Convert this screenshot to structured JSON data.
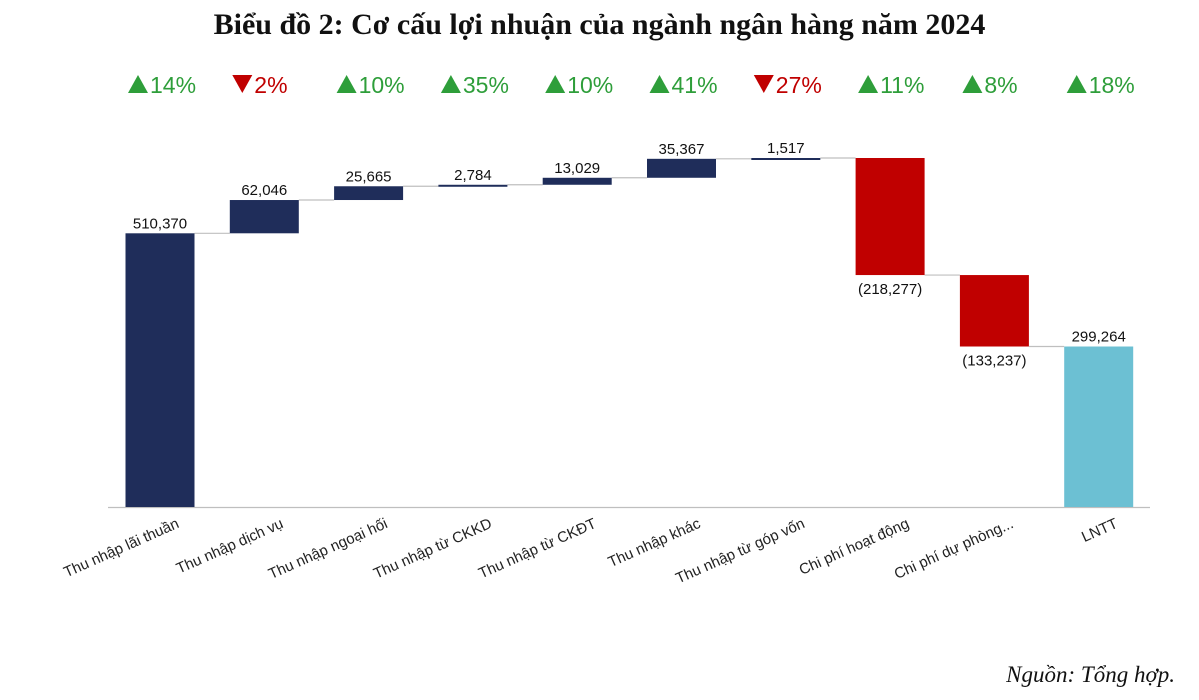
{
  "title": "Biểu đồ 2: Cơ cấu lợi nhuận của ngành ngân hàng năm 2024",
  "source": "Nguồn: Tổng hợp.",
  "colors": {
    "increase": "#1f2d5a",
    "decrease": "#c00000",
    "total": "#6cc0d3",
    "up_arrow": "#2e9e3a",
    "down_arrow": "#c00000",
    "connector": "#bfbfbf",
    "axis": "#bfbfbf"
  },
  "chart_data": {
    "type": "waterfall",
    "categories": [
      "Thu nhập lãi thuần",
      "Thu nhập dịch vụ",
      "Thu nhập ngoại hối",
      "Thu nhập từ CKKD",
      "Thu nhập từ CKĐT",
      "Thu nhập khác",
      "Thu nhập từ góp vốn",
      "Chi phí hoạt động",
      "Chi phí dự phòng...",
      "LNTT"
    ],
    "values": [
      510370,
      62046,
      25665,
      2784,
      13029,
      35367,
      1517,
      -218277,
      -133237,
      299264
    ],
    "kinds": [
      "start",
      "increase",
      "increase",
      "increase",
      "increase",
      "increase",
      "increase",
      "decrease",
      "decrease",
      "total"
    ],
    "value_labels": [
      "510,370",
      "62,046",
      "25,665",
      "2,784",
      "13,029",
      "35,367",
      "1,517",
      "(218,277)",
      "(133,237)",
      "299,264"
    ],
    "growth": [
      {
        "dir": "up",
        "text": "14%"
      },
      {
        "dir": "down",
        "text": "2%"
      },
      {
        "dir": "up",
        "text": "10%"
      },
      {
        "dir": "up",
        "text": "35%"
      },
      {
        "dir": "up",
        "text": "10%"
      },
      {
        "dir": "up",
        "text": "41%"
      },
      {
        "dir": "down",
        "text": "27%"
      },
      {
        "dir": "up",
        "text": "11%"
      },
      {
        "dir": "up",
        "text": "8%"
      },
      {
        "dir": "up",
        "text": "18%"
      }
    ],
    "ylim": [
      0,
      650778
    ],
    "grid": false,
    "legend": "none"
  }
}
